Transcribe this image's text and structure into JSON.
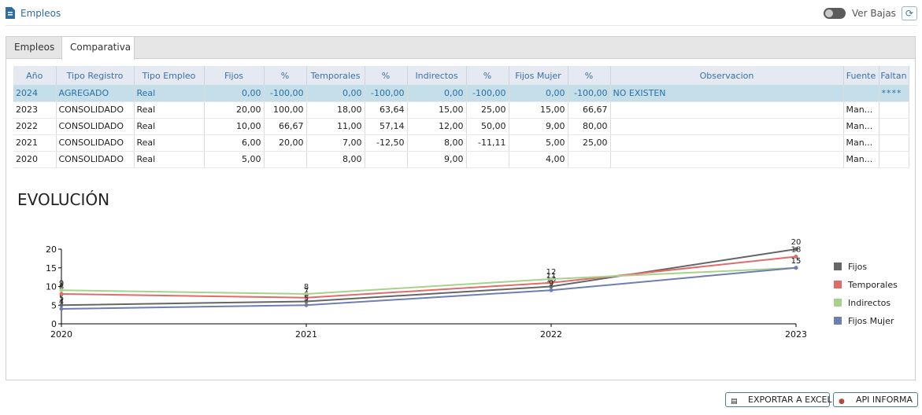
{
  "header": {
    "title": "Empleos",
    "toggle_label": "Ver Bajas"
  },
  "tabs": [
    {
      "label": "Empleos"
    },
    {
      "label": "Comparativa"
    }
  ],
  "table": {
    "columns": [
      "Año",
      "Tipo Registro",
      "Tipo Empleo",
      "Fijos",
      "%",
      "Temporales",
      "%",
      "Indirectos",
      "%",
      "Fijos Mujer",
      "%",
      "Observacion",
      "Fuente",
      "Faltan"
    ],
    "rows": [
      [
        "2024",
        "AGREGADO",
        "Real",
        "0,00",
        "-100,00",
        "0,00",
        "-100,00",
        "0,00",
        "-100,00",
        "0,00",
        "-100,00",
        "NO EXISTEN",
        "",
        "****"
      ],
      [
        "2023",
        "CONSOLIDADO",
        "Real",
        "20,00",
        "100,00",
        "18,00",
        "63,64",
        "15,00",
        "25,00",
        "15,00",
        "66,67",
        "",
        "Man...",
        ""
      ],
      [
        "2022",
        "CONSOLIDADO",
        "Real",
        "10,00",
        "66,67",
        "11,00",
        "57,14",
        "12,00",
        "50,00",
        "9,00",
        "80,00",
        "",
        "Man...",
        ""
      ],
      [
        "2021",
        "CONSOLIDADO",
        "Real",
        "6,00",
        "20,00",
        "7,00",
        "-12,50",
        "8,00",
        "-11,11",
        "5,00",
        "25,00",
        "",
        "Man...",
        ""
      ],
      [
        "2020",
        "CONSOLIDADO",
        "Real",
        "5,00",
        "",
        "8,00",
        "",
        "9,00",
        "",
        "4,00",
        "",
        "",
        "Man...",
        ""
      ]
    ]
  },
  "section_title": "EVOLUCIÓN",
  "chart_data": {
    "type": "line",
    "x": [
      "2020",
      "2021",
      "2022",
      "2023"
    ],
    "ylim": [
      0,
      20
    ],
    "yticks": [
      0,
      5,
      10,
      15,
      20
    ],
    "legend_position": "right",
    "series": [
      {
        "name": "Fijos",
        "values": [
          5,
          6,
          10,
          20
        ],
        "color": "#666666"
      },
      {
        "name": "Temporales",
        "values": [
          8,
          7,
          11,
          18
        ],
        "color": "#e06b6b"
      },
      {
        "name": "Indirectos",
        "values": [
          9,
          8,
          12,
          15
        ],
        "color": "#a9d18e"
      },
      {
        "name": "Fijos Mujer",
        "values": [
          4,
          5,
          9,
          15
        ],
        "color": "#6d7fb0"
      }
    ]
  },
  "buttons": {
    "export_label": "EXPORTAR A EXCEL",
    "api_label": "API INFORMA"
  }
}
